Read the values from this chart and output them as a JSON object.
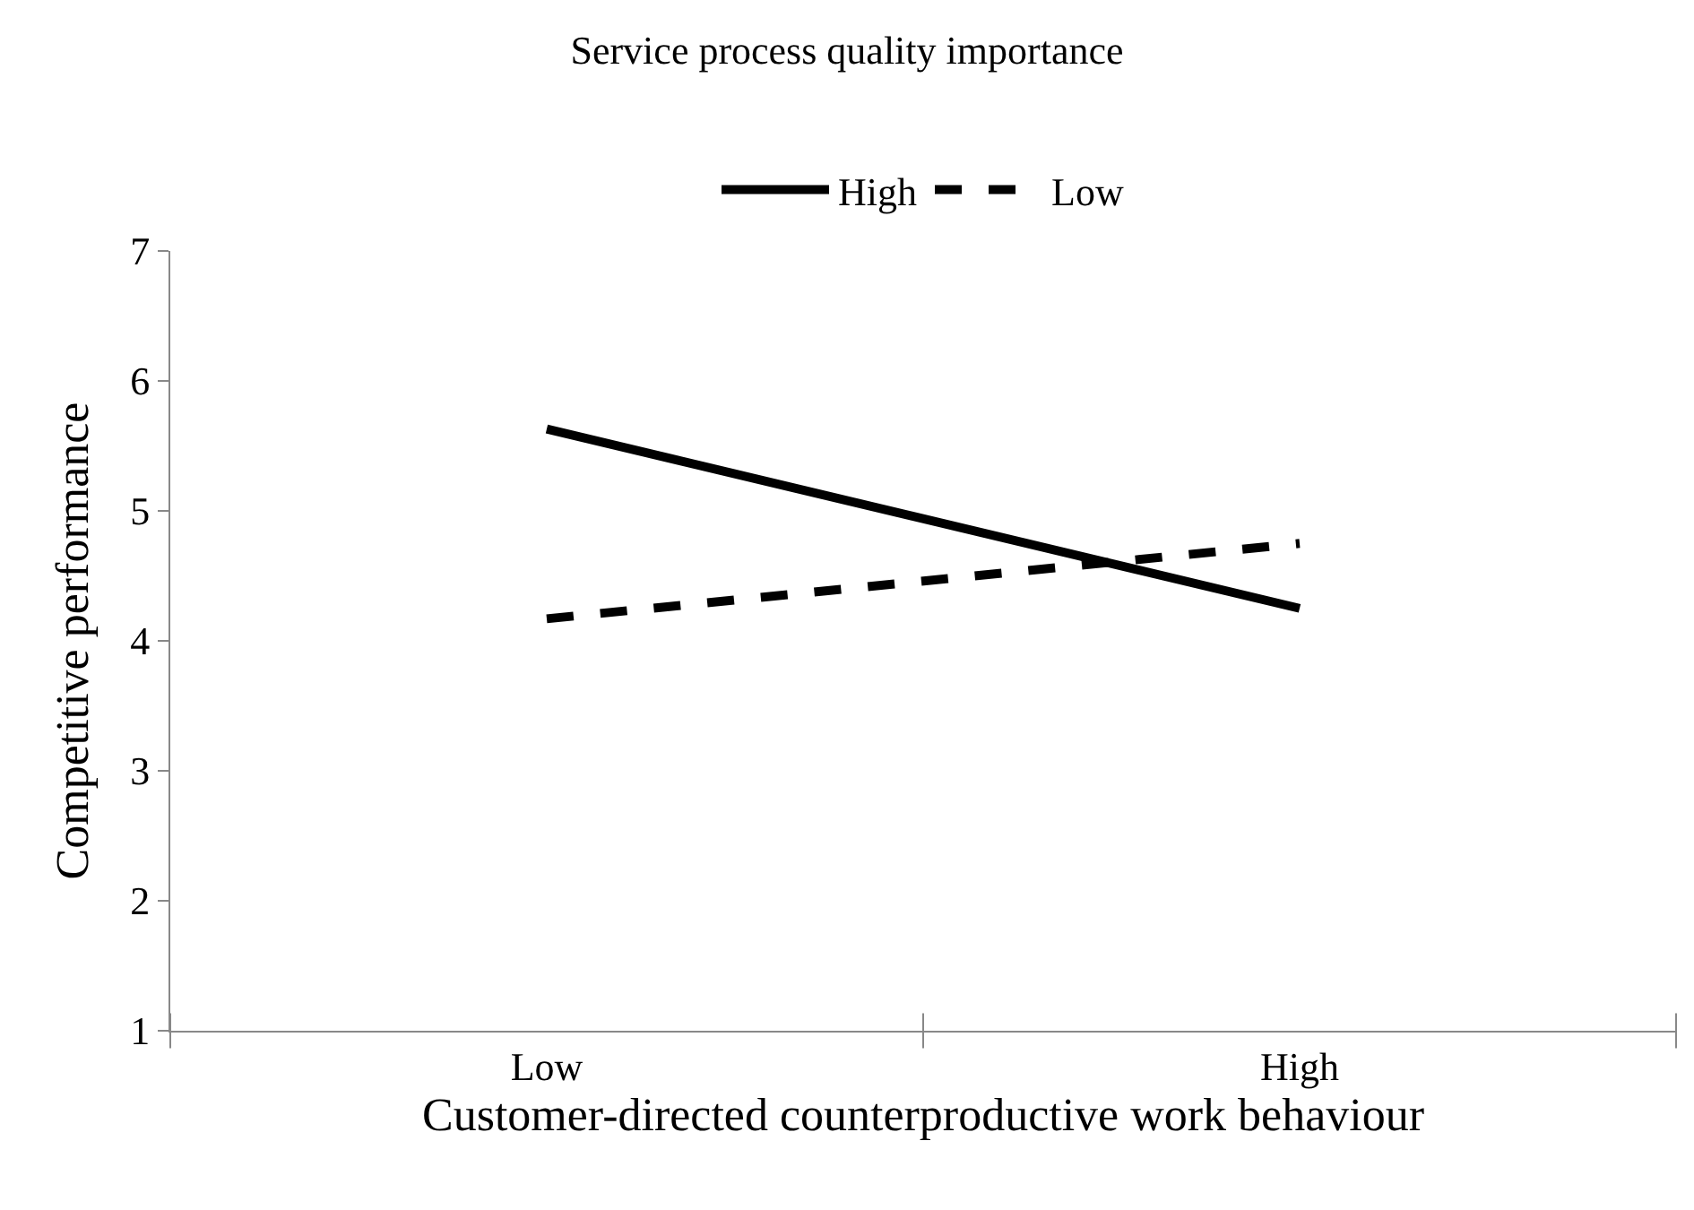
{
  "chart_data": {
    "type": "line",
    "title": "Service process quality importance",
    "xlabel": "Customer-directed counterproductive work behaviour",
    "ylabel": "Competitive performance",
    "categories": [
      "Low",
      "High"
    ],
    "series": [
      {
        "name": "High",
        "color": "#000000",
        "values": [
          5.63,
          4.25
        ],
        "line_style": "solid"
      },
      {
        "name": "Low",
        "color": "#000000",
        "values": [
          4.17,
          4.75
        ],
        "line_style": "dashed"
      }
    ],
    "ylim": [
      1,
      7
    ],
    "yticks": [
      1,
      2,
      3,
      4,
      5,
      6,
      7
    ],
    "legend": "top",
    "marker": "none"
  }
}
